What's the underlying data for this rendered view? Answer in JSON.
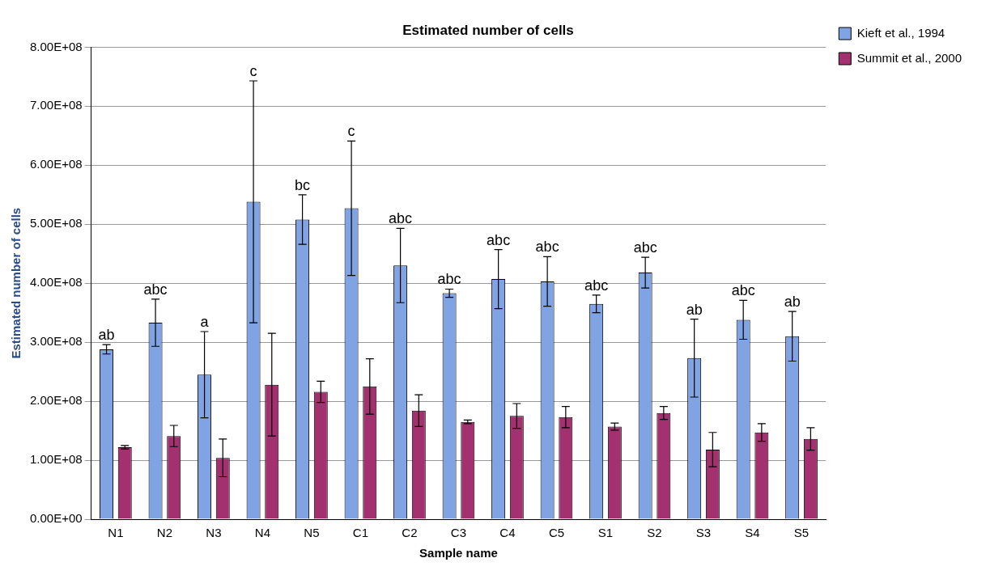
{
  "chart_data": {
    "type": "bar",
    "title": "Estimated number of cells",
    "xlabel": "Sample name",
    "ylabel": "Estimated number of cells",
    "categories": [
      "N1",
      "N2",
      "N3",
      "N4",
      "N5",
      "C1",
      "C2",
      "C3",
      "C4",
      "C5",
      "S1",
      "S2",
      "S3",
      "S4",
      "S5"
    ],
    "series": [
      {
        "name": "Kieft et al., 1994",
        "color": "#7fa3e3",
        "values": [
          288000000,
          333000000,
          245000000,
          538000000,
          508000000,
          527000000,
          430000000,
          383000000,
          407000000,
          403000000,
          365000000,
          418000000,
          273000000,
          338000000,
          310000000
        ],
        "errors": [
          8000000,
          40000000,
          73000000,
          205000000,
          42000000,
          114000000,
          63000000,
          7000000,
          50000000,
          42000000,
          15000000,
          26000000,
          66000000,
          33000000,
          42000000
        ]
      },
      {
        "name": "Summit et al., 2000",
        "color": "#a3306f",
        "values": [
          122000000,
          141000000,
          104000000,
          228000000,
          216000000,
          225000000,
          184000000,
          165000000,
          175000000,
          173000000,
          157000000,
          180000000,
          118000000,
          147000000,
          136000000
        ],
        "errors": [
          3000000,
          18000000,
          32000000,
          87000000,
          18000000,
          47000000,
          27000000,
          3000000,
          21000000,
          18000000,
          6000000,
          11000000,
          29000000,
          15000000,
          19000000
        ]
      }
    ],
    "ylim": [
      0,
      800000000
    ],
    "yticks": [
      {
        "value": 0,
        "label": "0.00E+00"
      },
      {
        "value": 100000000,
        "label": "1.00E+08"
      },
      {
        "value": 200000000,
        "label": "2.00E+08"
      },
      {
        "value": 300000000,
        "label": "3.00E+08"
      },
      {
        "value": 400000000,
        "label": "4.00E+08"
      },
      {
        "value": 500000000,
        "label": "5.00E+08"
      },
      {
        "value": 600000000,
        "label": "6.00E+08"
      },
      {
        "value": 700000000,
        "label": "7.00E+08"
      },
      {
        "value": 800000000,
        "label": "8.00E+08"
      }
    ],
    "grid": "y",
    "legend": "top right",
    "annotations": [
      "ab",
      "abc",
      "a",
      "c",
      "bc",
      "c",
      "abc",
      "abc",
      "abc",
      "abc",
      "abc",
      "abc",
      "ab",
      "abc",
      "ab"
    ]
  }
}
